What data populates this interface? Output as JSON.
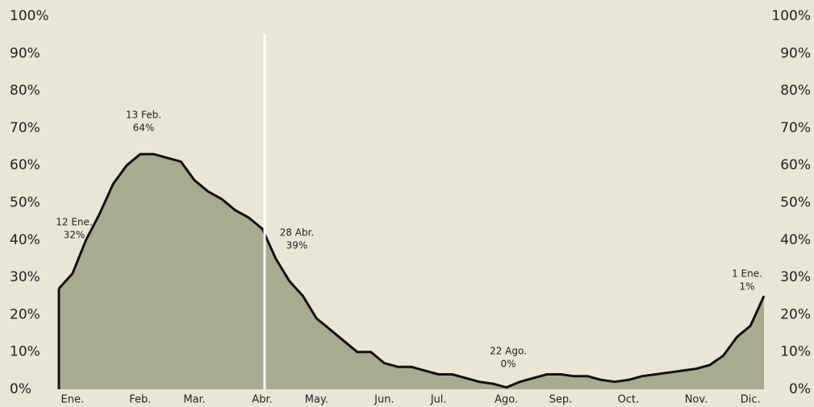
{
  "chart_data": {
    "type": "area",
    "categories": [
      null,
      "Ene.",
      null,
      null,
      null,
      null,
      "Feb.",
      null,
      null,
      null,
      "Mar.",
      null,
      null,
      null,
      null,
      "Abr.",
      null,
      null,
      null,
      "May.",
      null,
      null,
      null,
      null,
      "Jun.",
      null,
      null,
      null,
      "Jul.",
      null,
      null,
      null,
      null,
      "Ago.",
      null,
      null,
      null,
      "Sep.",
      null,
      null,
      null,
      null,
      "Oct.",
      null,
      null,
      null,
      null,
      "Nov.",
      null,
      null,
      null,
      "Dic.",
      null
    ],
    "series": [
      {
        "color": "#a8ab8f",
        "values": [
          27,
          31,
          40,
          47,
          55,
          60,
          63,
          63,
          62,
          61,
          56,
          53,
          51,
          48,
          46,
          43,
          35,
          29,
          25,
          19,
          16,
          13,
          10,
          10,
          7,
          6,
          6,
          5,
          4,
          4,
          3,
          2,
          1.5,
          0.5,
          2,
          3,
          4,
          4,
          3.5,
          3.5,
          2.5,
          2,
          2.5,
          3.5,
          4,
          4.5,
          5,
          5.5,
          6.5,
          9,
          14,
          17,
          25
        ]
      }
    ],
    "ylim": [
      0,
      100
    ],
    "yticks": [
      {
        "value": 0,
        "label": "0%"
      },
      {
        "value": 10,
        "label": "10%"
      },
      {
        "value": 20,
        "label": "20%"
      },
      {
        "value": 30,
        "label": "30%"
      },
      {
        "value": 40,
        "label": "40%"
      },
      {
        "value": 50,
        "label": "50%"
      },
      {
        "value": 60,
        "label": "60%"
      },
      {
        "value": 70,
        "label": "70%"
      },
      {
        "value": 80,
        "label": "80%"
      },
      {
        "value": 90,
        "label": "90%"
      },
      {
        "value": 100,
        "label": "100%"
      }
    ],
    "y2lim": [
      0,
      100
    ],
    "y2ticks": [
      {
        "value": 0,
        "label": "0%"
      },
      {
        "value": 10,
        "label": "10%"
      },
      {
        "value": 20,
        "label": "20%"
      },
      {
        "value": 30,
        "label": "30%"
      },
      {
        "value": 40,
        "label": "40%"
      },
      {
        "value": 50,
        "label": "50%"
      },
      {
        "value": 60,
        "label": "60%"
      },
      {
        "value": 70,
        "label": "70%"
      },
      {
        "value": 80,
        "label": "80%"
      },
      {
        "value": 90,
        "label": "90%"
      },
      {
        "value": 100,
        "label": "100%"
      }
    ],
    "annotations": [
      {
        "lines": [
          "12 Ene.",
          "32%"
        ]
      },
      {
        "lines": [
          "13 Feb.",
          "64%"
        ]
      },
      {
        "lines": [
          "28 Abr.",
          "39%"
        ]
      },
      {
        "lines": [
          "22 Ago.",
          "0%"
        ]
      },
      {
        "lines": [
          "1 Ene.",
          "1%"
        ]
      }
    ]
  }
}
